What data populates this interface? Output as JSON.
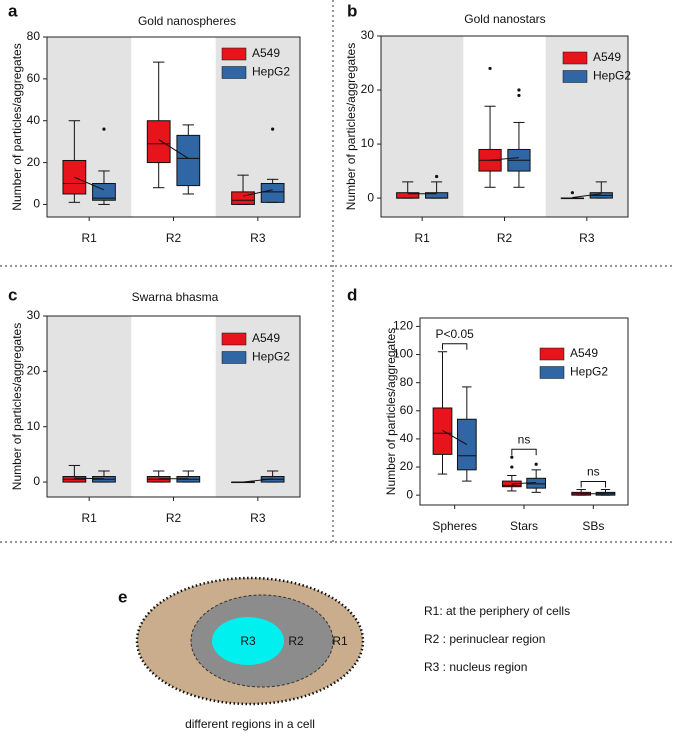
{
  "chart_data": [
    {
      "type": "box",
      "panel": "a",
      "title": "Gold nanospheres",
      "y_label": "Number of particles/aggregates",
      "categories": [
        "R1",
        "R2",
        "R3"
      ],
      "shaded": [
        0,
        2
      ],
      "ylim": [
        -6,
        80
      ],
      "yticks": [
        0,
        20,
        40,
        60,
        80
      ],
      "legend": "upper right",
      "series": [
        {
          "name": "A549",
          "color": "#e8141b",
          "boxes": [
            {
              "min": 1,
              "q1": 5,
              "median": 10,
              "q3": 21,
              "max": 40,
              "mean": 13,
              "outliers": []
            },
            {
              "min": 8,
              "q1": 20,
              "median": 29,
              "q3": 40,
              "max": 68,
              "mean": 31,
              "outliers": []
            },
            {
              "min": 0,
              "q1": 0,
              "median": 2,
              "q3": 6,
              "max": 14,
              "mean": 4,
              "outliers": []
            }
          ]
        },
        {
          "name": "HepG2",
          "color": "#2f66a3",
          "boxes": [
            {
              "min": 0,
              "q1": 2,
              "median": 3,
              "q3": 10,
              "max": 16,
              "mean": 7,
              "outliers": [
                36
              ]
            },
            {
              "min": 5,
              "q1": 9,
              "median": 22,
              "q3": 33,
              "max": 38,
              "mean": 22,
              "outliers": []
            },
            {
              "min": 1,
              "q1": 1,
              "median": 6,
              "q3": 10,
              "max": 12,
              "mean": 7,
              "outliers": [
                36
              ]
            }
          ]
        }
      ]
    },
    {
      "type": "box",
      "panel": "b",
      "title": "Gold nanostars",
      "y_label": "Number of particles/aggregates",
      "categories": [
        "R1",
        "R2",
        "R3"
      ],
      "shaded": [
        0,
        2
      ],
      "ylim": [
        -3.5,
        30
      ],
      "yticks": [
        0,
        10,
        20,
        30
      ],
      "legend": "upper right",
      "series": [
        {
          "name": "A549",
          "color": "#e8141b",
          "boxes": [
            {
              "min": 0,
              "q1": 0,
              "median": 0,
              "q3": 1,
              "max": 3,
              "mean": 0.8,
              "outliers": []
            },
            {
              "min": 2,
              "q1": 5,
              "median": 7,
              "q3": 9,
              "max": 17,
              "mean": 7,
              "outliers": [
                24
              ]
            },
            {
              "min": 0,
              "q1": 0,
              "median": 0,
              "q3": 0,
              "max": 0,
              "mean": 0.1,
              "outliers": [
                1
              ]
            }
          ]
        },
        {
          "name": "HepG2",
          "color": "#2f66a3",
          "boxes": [
            {
              "min": 0,
              "q1": 0,
              "median": 0,
              "q3": 1,
              "max": 3,
              "mean": 0.8,
              "outliers": [
                4
              ]
            },
            {
              "min": 2,
              "q1": 5,
              "median": 7,
              "q3": 9,
              "max": 14,
              "mean": 7.5,
              "outliers": [
                19,
                20
              ]
            },
            {
              "min": 0,
              "q1": 0,
              "median": 0.5,
              "q3": 1,
              "max": 3,
              "mean": 0.8,
              "outliers": []
            }
          ]
        }
      ]
    },
    {
      "type": "box",
      "panel": "c",
      "title": "Swarna bhasma",
      "y_label": "Number of particles/aggregates",
      "categories": [
        "R1",
        "R2",
        "R3"
      ],
      "shaded": [
        0,
        2
      ],
      "ylim": [
        -2.7,
        30
      ],
      "yticks": [
        0,
        10,
        20,
        30
      ],
      "legend": "upper right",
      "series": [
        {
          "name": "A549",
          "color": "#e8141b",
          "boxes": [
            {
              "min": 0,
              "q1": 0,
              "median": 0.5,
              "q3": 1,
              "max": 3,
              "mean": 0.7,
              "outliers": []
            },
            {
              "min": 0,
              "q1": 0,
              "median": 0.5,
              "q3": 1,
              "max": 2,
              "mean": 0.6,
              "outliers": []
            },
            {
              "min": 0,
              "q1": 0,
              "median": 0,
              "q3": 0,
              "max": 0,
              "mean": 0,
              "outliers": []
            }
          ]
        },
        {
          "name": "HepG2",
          "color": "#2f66a3",
          "boxes": [
            {
              "min": 0,
              "q1": 0,
              "median": 0.5,
              "q3": 1,
              "max": 2,
              "mean": 0.6,
              "outliers": []
            },
            {
              "min": 0,
              "q1": 0,
              "median": 0.5,
              "q3": 1,
              "max": 2,
              "mean": 0.6,
              "outliers": []
            },
            {
              "min": 0,
              "q1": 0,
              "median": 0.5,
              "q3": 1,
              "max": 2,
              "mean": 0.6,
              "outliers": []
            }
          ]
        }
      ]
    },
    {
      "type": "box",
      "panel": "d",
      "y_label": "Number of particles/aggregates",
      "categories": [
        "Spheres",
        "Stars",
        "SBs"
      ],
      "shaded": [],
      "ylim": [
        -7,
        126
      ],
      "yticks": [
        0,
        20,
        40,
        60,
        80,
        100,
        120
      ],
      "legend": "upper right",
      "annotations": [
        {
          "text": "P<0.05",
          "category": 0
        },
        {
          "text": "ns",
          "category": 1
        },
        {
          "text": "ns",
          "category": 2
        }
      ],
      "series": [
        {
          "name": "A549",
          "color": "#e8141b",
          "boxes": [
            {
              "min": 15,
              "q1": 29,
              "median": 44,
              "q3": 62,
              "max": 102,
              "mean": 46,
              "outliers": []
            },
            {
              "min": 3,
              "q1": 6,
              "median": 7,
              "q3": 10,
              "max": 14,
              "mean": 8,
              "outliers": [
                20,
                27
              ]
            },
            {
              "min": 0,
              "q1": 0,
              "median": 1,
              "q3": 2,
              "max": 4,
              "mean": 1,
              "outliers": []
            }
          ]
        },
        {
          "name": "HepG2",
          "color": "#2f66a3",
          "boxes": [
            {
              "min": 10,
              "q1": 18,
              "median": 28,
              "q3": 54,
              "max": 77,
              "mean": 36,
              "outliers": []
            },
            {
              "min": 2,
              "q1": 5,
              "median": 8,
              "q3": 12,
              "max": 18,
              "mean": 9,
              "outliers": [
                22
              ]
            },
            {
              "min": 0,
              "q1": 0,
              "median": 1,
              "q3": 2,
              "max": 4,
              "mean": 1,
              "outliers": []
            }
          ]
        }
      ]
    }
  ],
  "diagram": {
    "panel": "e",
    "regions": [
      "R1",
      "R2",
      "R3"
    ],
    "caption": "different regions in a cell",
    "legend": [
      "R1: at the periphery of cells",
      "R2 : perinuclear region",
      "R3 : nucleus region"
    ]
  }
}
